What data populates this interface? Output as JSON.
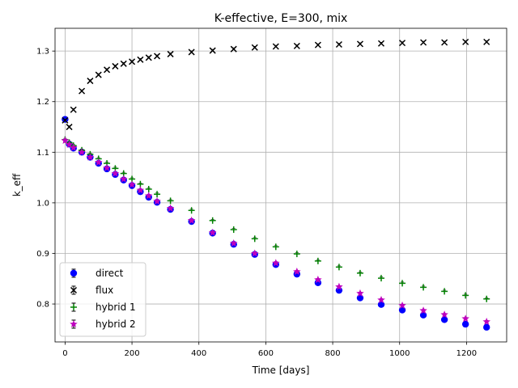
{
  "chart_data": {
    "type": "scatter",
    "title": "K-effective, E=300, mix",
    "xlabel": "Time [days]",
    "ylabel": "k_eff",
    "xlim": [
      -30,
      1320
    ],
    "ylim": [
      0.725,
      1.345
    ],
    "xticks": [
      0,
      200,
      400,
      600,
      800,
      1000,
      1200
    ],
    "yticks": [
      0.8,
      0.9,
      1.0,
      1.1,
      1.2,
      1.3
    ],
    "xtick_labels": [
      "0",
      "200",
      "400",
      "600",
      "800",
      "1000",
      "1200"
    ],
    "ytick_labels": [
      "0.8",
      "0.9",
      "1.0",
      "1.1",
      "1.2",
      "1.3"
    ],
    "grid": true,
    "legend_position": "lower-left",
    "x": [
      0,
      12.5,
      25,
      50,
      75,
      100,
      125,
      150,
      175,
      200,
      225,
      250,
      275,
      315,
      378,
      441,
      504,
      567,
      630,
      693,
      756,
      819,
      882,
      945,
      1008,
      1071,
      1134,
      1197,
      1260
    ],
    "series": [
      {
        "name": "direct",
        "marker": "circle",
        "color": "#0000ff",
        "values": [
          1.165,
          1.116,
          1.108,
          1.1,
          1.09,
          1.078,
          1.067,
          1.056,
          1.045,
          1.034,
          1.022,
          1.011,
          1.001,
          0.987,
          0.963,
          0.94,
          0.918,
          0.898,
          0.878,
          0.859,
          0.842,
          0.827,
          0.812,
          0.799,
          0.788,
          0.778,
          0.769,
          0.76,
          0.754
        ]
      },
      {
        "name": "flux",
        "marker": "x",
        "color": "#000000",
        "values": [
          1.163,
          1.15,
          1.184,
          1.221,
          1.241,
          1.253,
          1.263,
          1.27,
          1.275,
          1.279,
          1.283,
          1.287,
          1.29,
          1.294,
          1.298,
          1.301,
          1.304,
          1.307,
          1.309,
          1.31,
          1.312,
          1.313,
          1.314,
          1.315,
          1.316,
          1.317,
          1.317,
          1.318,
          1.318
        ]
      },
      {
        "name": "hybrid 1",
        "marker": "plus",
        "color": "#008000",
        "values": [
          1.125,
          1.119,
          1.113,
          1.104,
          1.096,
          1.087,
          1.078,
          1.068,
          1.058,
          1.047,
          1.037,
          1.027,
          1.017,
          1.004,
          0.985,
          0.965,
          0.947,
          0.929,
          0.913,
          0.899,
          0.885,
          0.873,
          0.861,
          0.851,
          0.841,
          0.833,
          0.825,
          0.817,
          0.81
        ]
      },
      {
        "name": "hybrid 2",
        "marker": "star",
        "color": "#bf00bf",
        "values": [
          1.123,
          1.115,
          1.109,
          1.1,
          1.09,
          1.08,
          1.069,
          1.058,
          1.047,
          1.036,
          1.025,
          1.014,
          1.003,
          0.989,
          0.965,
          0.941,
          0.92,
          0.9,
          0.881,
          0.864,
          0.848,
          0.834,
          0.821,
          0.808,
          0.797,
          0.787,
          0.779,
          0.771,
          0.765
        ]
      }
    ]
  }
}
